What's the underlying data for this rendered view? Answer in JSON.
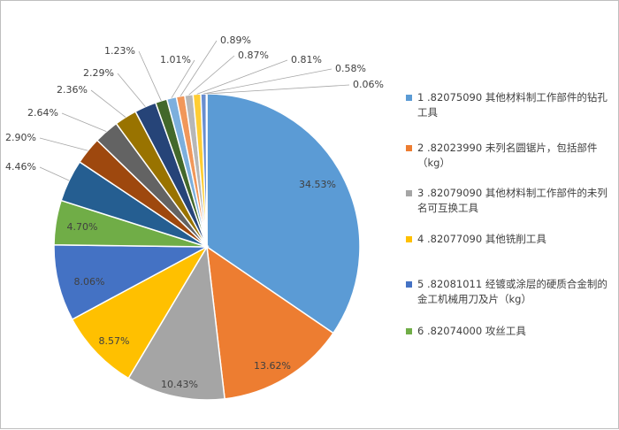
{
  "chart_data": {
    "type": "pie",
    "title": "",
    "slices": [
      {
        "index": "1",
        "label": ".82075090 其他材料制工作部件的钻孔工具",
        "value": 34.53,
        "value_label": "34.53%",
        "color": "#5b9bd5"
      },
      {
        "index": "2",
        "label": ".82023990 未列名圆锯片，包括部件（kg）",
        "value": 13.62,
        "value_label": "13.62%",
        "color": "#ed7d31"
      },
      {
        "index": "3",
        "label": ".82079090 其他材料制工作部件的未列名可互换工具",
        "value": 10.43,
        "value_label": "10.43%",
        "color": "#a5a5a5"
      },
      {
        "index": "4",
        "label": ".82077090 其他铣削工具",
        "value": 8.57,
        "value_label": "8.57%",
        "color": "#ffc000"
      },
      {
        "index": "5",
        "label": ".82081011 经镀或涂层的硬质合金制的金工机械用刀及片（kg）",
        "value": 8.06,
        "value_label": "8.06%",
        "color": "#4472c4"
      },
      {
        "index": "6",
        "label": ".82074000 攻丝工具",
        "value": 4.7,
        "value_label": "4.70%",
        "color": "#70ad47"
      },
      {
        "index": "7",
        "label": "",
        "value": 4.46,
        "value_label": "4.46%",
        "color": "#255e91"
      },
      {
        "index": "8",
        "label": "",
        "value": 2.9,
        "value_label": "2.90%",
        "color": "#9e480e"
      },
      {
        "index": "9",
        "label": "",
        "value": 2.64,
        "value_label": "2.64%",
        "color": "#636363"
      },
      {
        "index": "10",
        "label": "",
        "value": 2.36,
        "value_label": "2.36%",
        "color": "#997300"
      },
      {
        "index": "11",
        "label": "",
        "value": 2.29,
        "value_label": "2.29%",
        "color": "#264478"
      },
      {
        "index": "12",
        "label": "",
        "value": 1.23,
        "value_label": "1.23%",
        "color": "#43682b"
      },
      {
        "index": "13",
        "label": "",
        "value": 1.01,
        "value_label": "1.01%",
        "color": "#7cafdd"
      },
      {
        "index": "14",
        "label": "",
        "value": 0.89,
        "value_label": "0.89%",
        "color": "#f1975a"
      },
      {
        "index": "15",
        "label": "",
        "value": 0.87,
        "value_label": "0.87%",
        "color": "#b7b7b7"
      },
      {
        "index": "16",
        "label": "",
        "value": 0.81,
        "value_label": "0.81%",
        "color": "#ffcd33"
      },
      {
        "index": "17",
        "label": "",
        "value": 0.58,
        "value_label": "0.58%",
        "color": "#698ed0"
      },
      {
        "index": "18",
        "label": "",
        "value": 0.06,
        "value_label": "0.06%",
        "color": "#8cc168"
      }
    ],
    "legend_position": "right",
    "legend": [
      {
        "text": "1 .82075090 其他材料制工作部件的钻孔工具",
        "color": "#5b9bd5"
      },
      {
        "text": "2 .82023990 未列名圆锯片，包括部件（kg）",
        "color": "#ed7d31"
      },
      {
        "text": "3 .82079090 其他材料制工作部件的未列名可互换工具",
        "color": "#a5a5a5"
      },
      {
        "text": "4 .82077090 其他铣削工具",
        "color": "#ffc000"
      },
      {
        "text": "5 .82081011 经镀或涂层的硬质合金制的金工机械用刀及片（kg）",
        "color": "#4472c4"
      },
      {
        "text": "6 .82074000 攻丝工具",
        "color": "#70ad47"
      }
    ]
  }
}
